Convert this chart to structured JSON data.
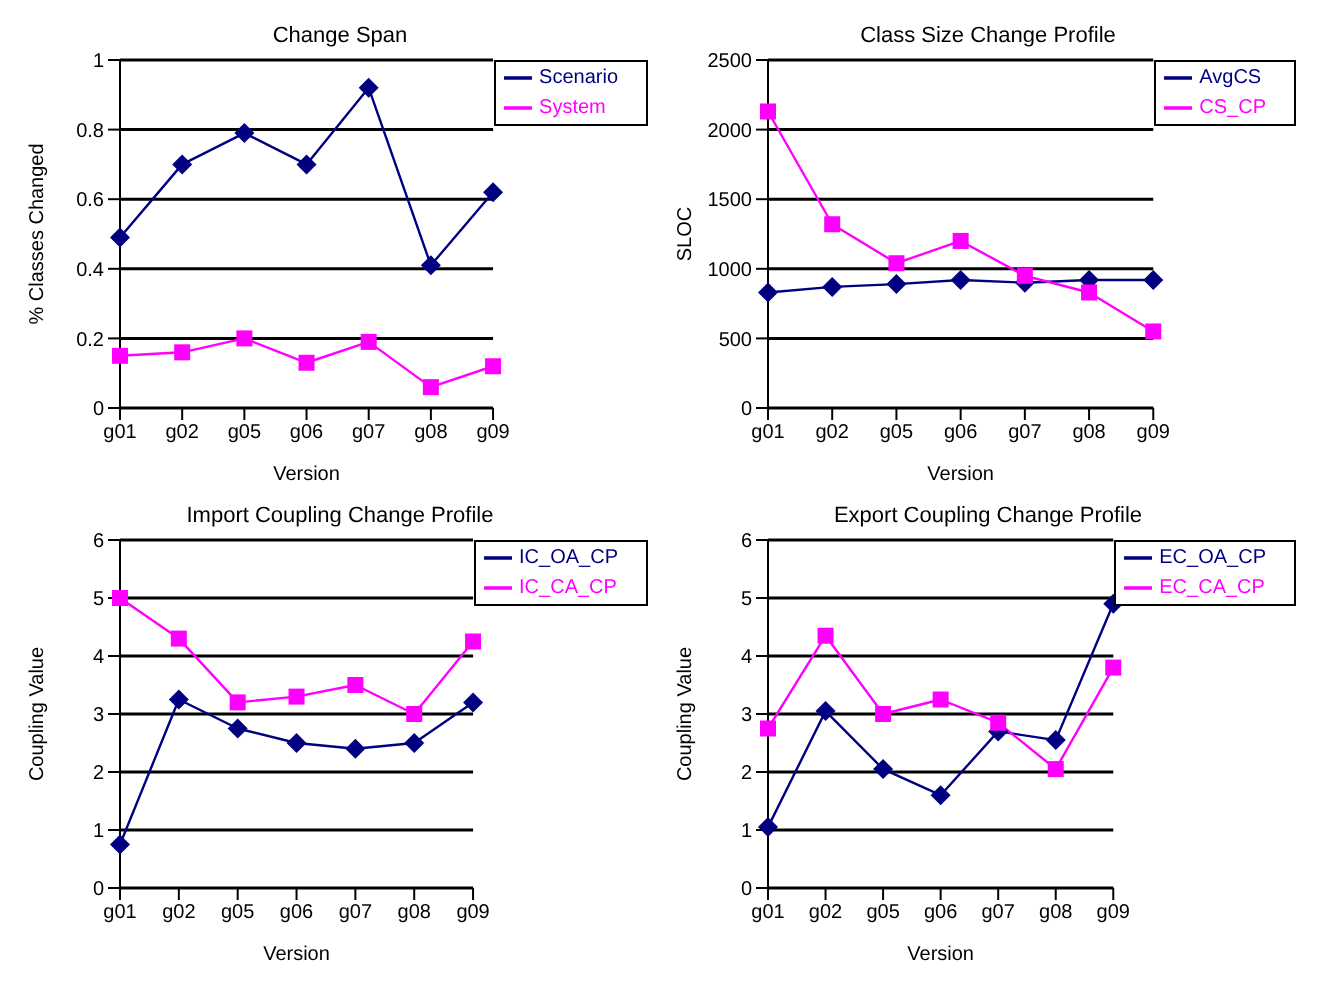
{
  "chart_data": [
    {
      "type": "line",
      "title": "Change Span",
      "xlabel": "Version",
      "ylabel": "% Classes Changed",
      "categories": [
        "g01",
        "g02",
        "g05",
        "g06",
        "g07",
        "g08",
        "g09"
      ],
      "ylim": [
        0,
        1
      ],
      "yticks": [
        0,
        0.2,
        0.4,
        0.6,
        0.8,
        1
      ],
      "grid": "y",
      "legend": "top right",
      "series": [
        {
          "name": "Scenario",
          "color": "#000080",
          "marker": "diamond",
          "values": [
            0.49,
            0.7,
            0.79,
            0.7,
            0.92,
            0.41,
            0.62
          ]
        },
        {
          "name": "System",
          "color": "#ff00ff",
          "marker": "square",
          "values": [
            0.15,
            0.16,
            0.2,
            0.13,
            0.19,
            0.06,
            0.12
          ]
        }
      ]
    },
    {
      "type": "line",
      "title": "Class Size Change Profile",
      "xlabel": "Version",
      "ylabel": "SLOC",
      "categories": [
        "g01",
        "g02",
        "g05",
        "g06",
        "g07",
        "g08",
        "g09"
      ],
      "ylim": [
        0,
        2500
      ],
      "yticks": [
        0,
        500,
        1000,
        1500,
        2000,
        2500
      ],
      "grid": "y",
      "legend": "top right",
      "series": [
        {
          "name": "AvgCS",
          "color": "#000080",
          "marker": "diamond",
          "values": [
            830,
            870,
            890,
            920,
            900,
            920,
            920
          ]
        },
        {
          "name": "CS_CP",
          "color": "#ff00ff",
          "marker": "square",
          "values": [
            2130,
            1320,
            1040,
            1200,
            950,
            830,
            550
          ]
        }
      ]
    },
    {
      "type": "line",
      "title": "Import Coupling Change Profile",
      "xlabel": "Version",
      "ylabel": "Coupling Value",
      "categories": [
        "g01",
        "g02",
        "g05",
        "g06",
        "g07",
        "g08",
        "g09"
      ],
      "ylim": [
        0,
        6
      ],
      "yticks": [
        0,
        1,
        2,
        3,
        4,
        5,
        6
      ],
      "grid": "y",
      "legend": "top right",
      "series": [
        {
          "name": "IC_OA_CP",
          "color": "#000080",
          "marker": "diamond",
          "values": [
            0.75,
            3.25,
            2.75,
            2.5,
            2.4,
            2.5,
            3.2
          ]
        },
        {
          "name": "IC_CA_CP",
          "color": "#ff00ff",
          "marker": "square",
          "values": [
            5.0,
            4.3,
            3.2,
            3.3,
            3.5,
            3.0,
            4.25
          ]
        }
      ]
    },
    {
      "type": "line",
      "title": "Export Coupling Change Profile",
      "xlabel": "Version",
      "ylabel": "Coupling Value",
      "categories": [
        "g01",
        "g02",
        "g05",
        "g06",
        "g07",
        "g08",
        "g09"
      ],
      "ylim": [
        0,
        6
      ],
      "yticks": [
        0,
        1,
        2,
        3,
        4,
        5,
        6
      ],
      "grid": "y",
      "legend": "top right",
      "series": [
        {
          "name": "EC_OA_CP",
          "color": "#000080",
          "marker": "diamond",
          "values": [
            1.05,
            3.05,
            2.05,
            1.6,
            2.7,
            2.55,
            4.9
          ]
        },
        {
          "name": "EC_CA_CP",
          "color": "#ff00ff",
          "marker": "square",
          "values": [
            2.75,
            4.35,
            3.0,
            3.25,
            2.85,
            2.05,
            3.8
          ]
        }
      ]
    }
  ]
}
